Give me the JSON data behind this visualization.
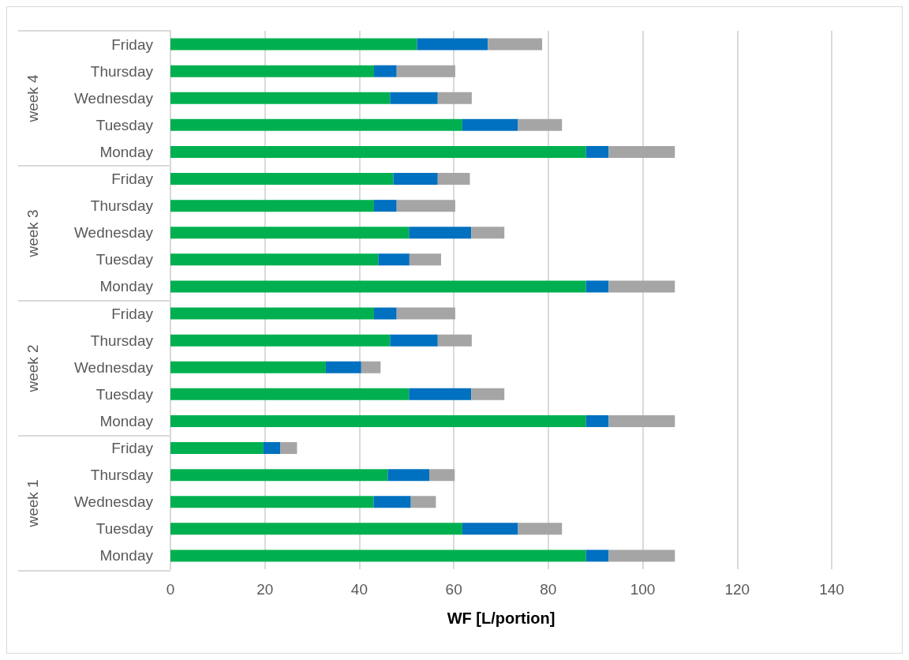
{
  "chart_data": {
    "type": "bar",
    "orientation": "horizontal",
    "stacked": true,
    "xlabel": "WF [L/portion]",
    "categories": [
      "Friday",
      "Thursday",
      "Wednesday",
      "Tuesday",
      "Monday",
      "Friday",
      "Thursday",
      "Wednesday",
      "Tuesday",
      "Monday",
      "Friday",
      "Thursday",
      "Wednesday",
      "Tuesday",
      "Monday",
      "Friday",
      "Thursday",
      "Wednesday",
      "Tuesday",
      "Monday"
    ],
    "annotations": [
      "week 4",
      "week 3",
      "week 2",
      "week 1"
    ],
    "series": [
      {
        "color": "#00b050",
        "values": [
          52.2,
          43.1,
          46.5,
          61.8,
          88.0,
          47.2,
          43.1,
          50.5,
          44.0,
          88.0,
          43.1,
          46.5,
          32.9,
          50.5,
          88.0,
          19.7,
          46.0,
          43.0,
          61.8,
          88.0
        ]
      },
      {
        "color": "#0070c0",
        "values": [
          15.0,
          4.8,
          10.1,
          11.8,
          4.8,
          9.4,
          4.8,
          13.2,
          6.6,
          4.8,
          4.8,
          10.1,
          7.5,
          13.2,
          4.8,
          3.6,
          8.8,
          7.9,
          11.8,
          4.8
        ]
      },
      {
        "color": "#a5a5a5",
        "values": [
          11.5,
          12.4,
          7.2,
          9.3,
          14.0,
          6.8,
          12.4,
          7.0,
          6.7,
          14.0,
          12.4,
          7.2,
          4.1,
          7.0,
          14.0,
          3.5,
          5.4,
          5.3,
          9.3,
          14.0
        ]
      }
    ],
    "xlim": [
      0,
      140
    ],
    "xticks": [
      0,
      20,
      40,
      60,
      80,
      100,
      120,
      140
    ],
    "grid": "x"
  }
}
